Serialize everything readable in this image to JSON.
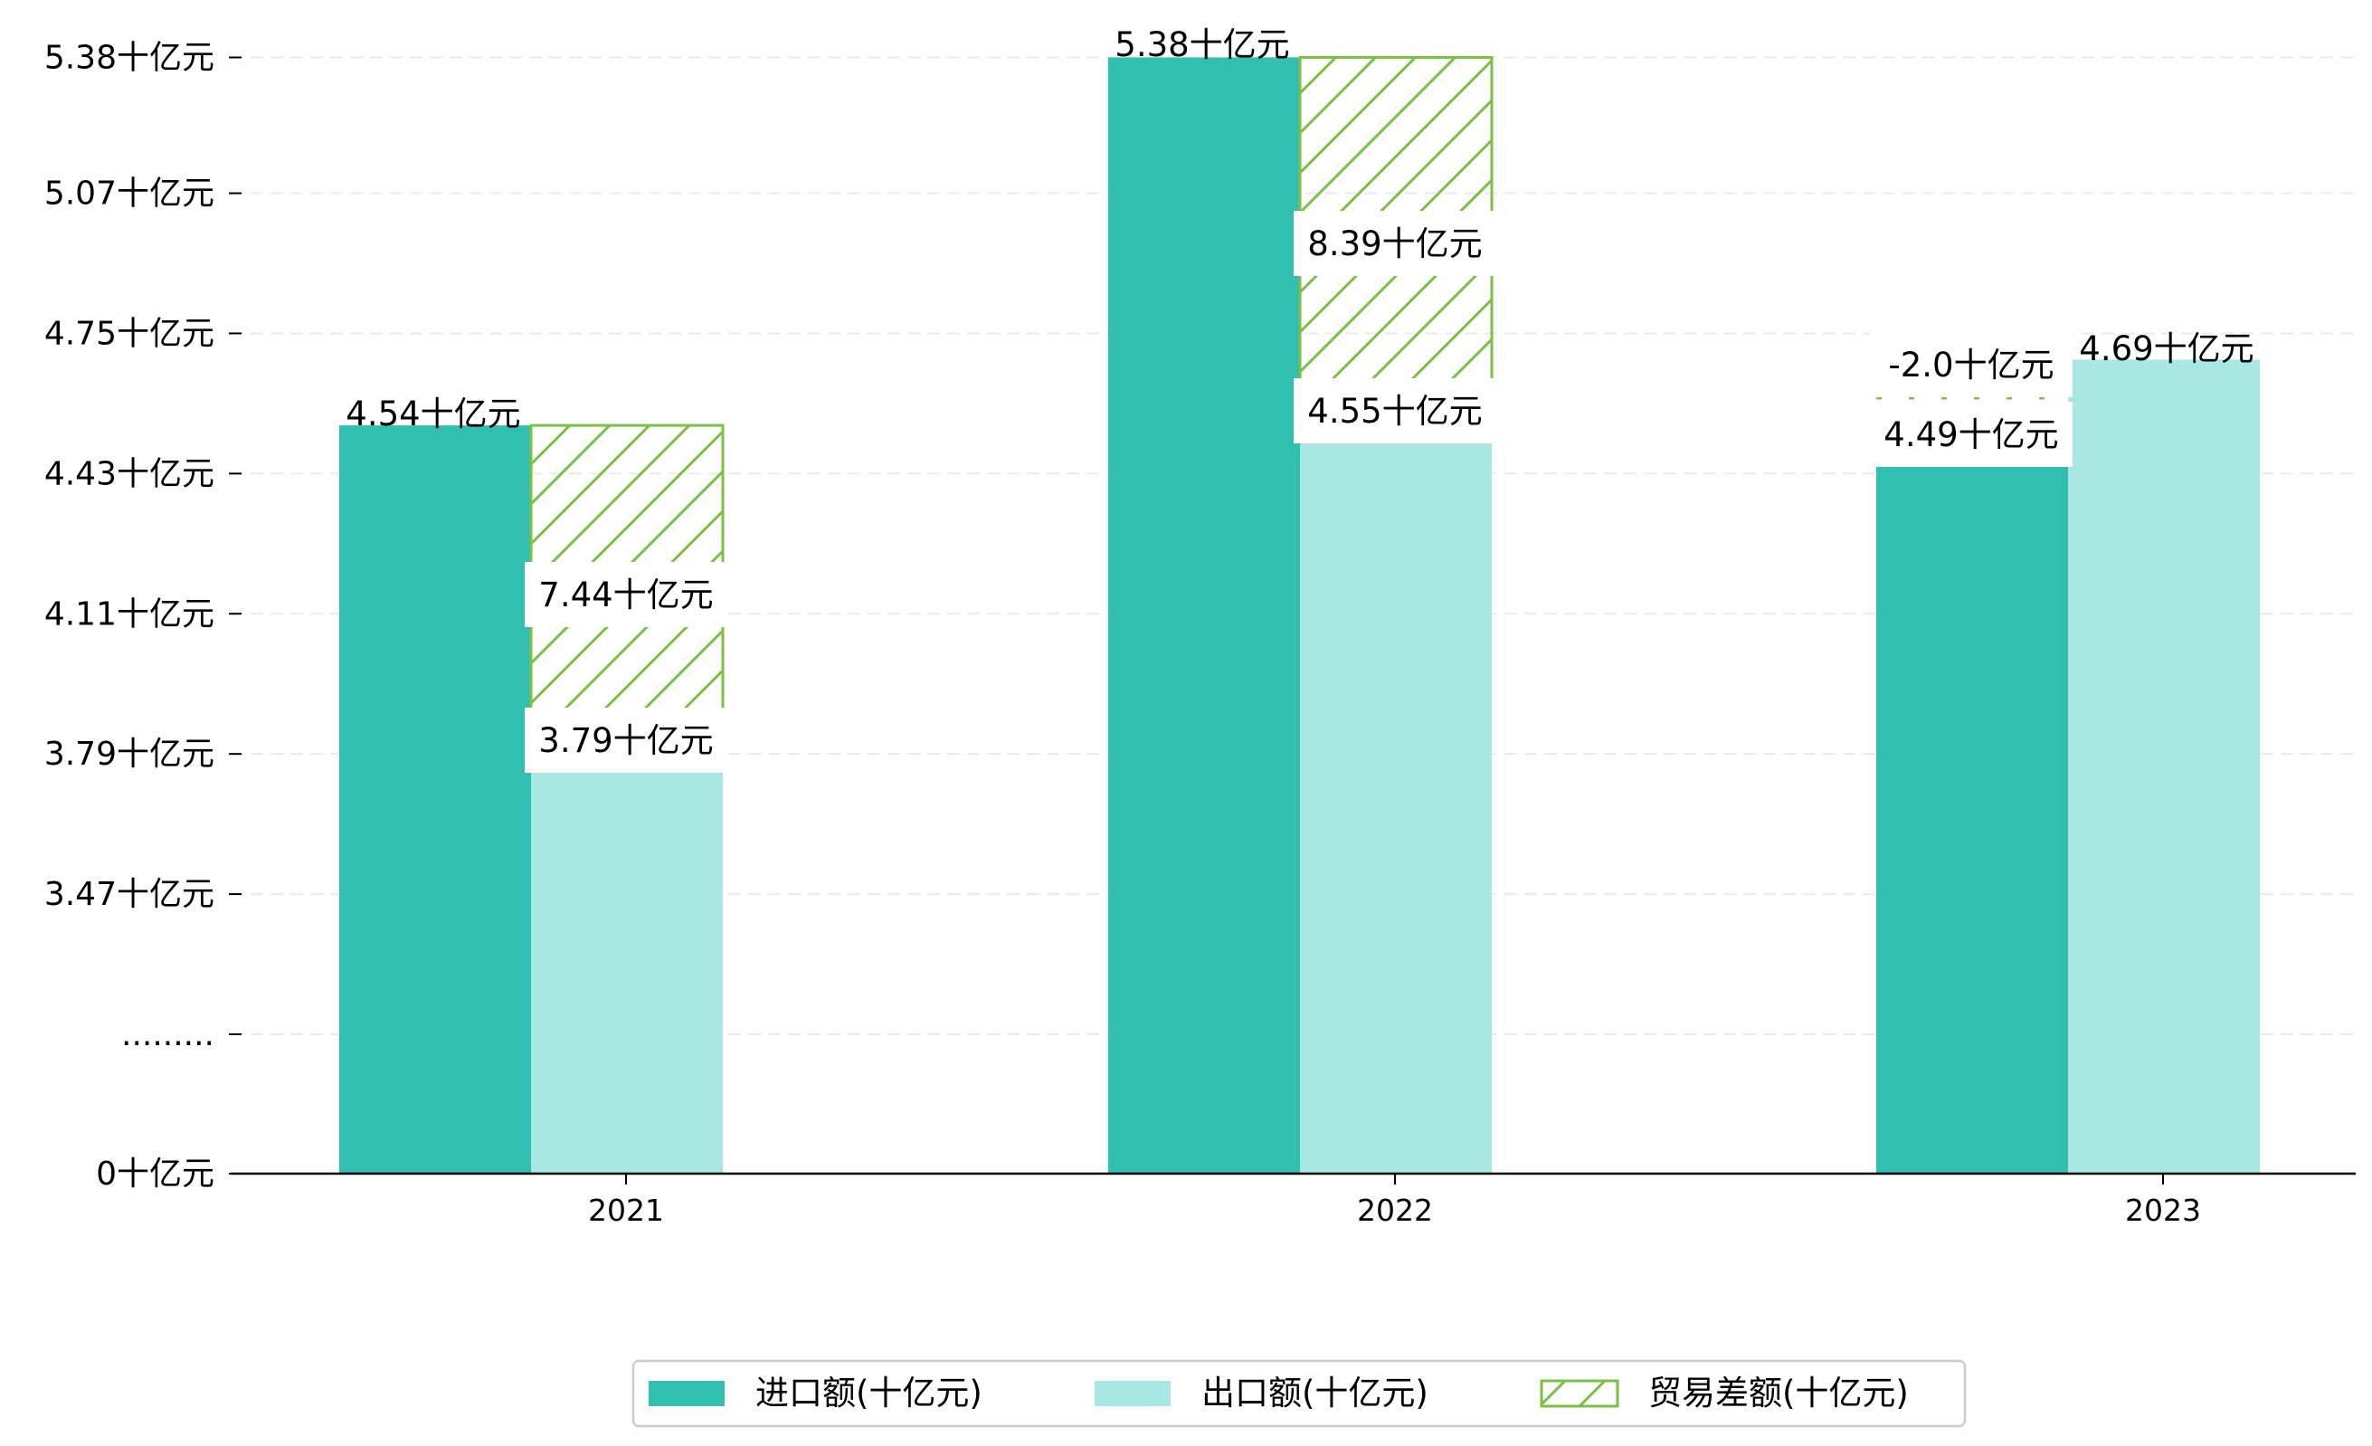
{
  "chart_data": {
    "type": "bar",
    "title": "",
    "xlabel": "",
    "ylabel": "",
    "categories": [
      "2021",
      "2022",
      "2023"
    ],
    "series": [
      {
        "name": "进口额(十亿元)",
        "values": [
          4.54,
          5.38,
          4.49
        ],
        "color": "#31bfb2"
      },
      {
        "name": "出口额(十亿元)",
        "values": [
          3.79,
          4.55,
          4.69
        ],
        "color": "#a9e8e2"
      },
      {
        "name": "贸易差额(十亿元)",
        "values": [
          7.44,
          8.39,
          -2.0
        ],
        "color": "#7bc143",
        "pattern": "hatch"
      }
    ],
    "data_labels": {
      "import": [
        "4.54十亿元",
        "5.38十亿元",
        "4.49十亿元"
      ],
      "export": [
        "3.79十亿元",
        "4.55十亿元",
        "4.69十亿元"
      ],
      "balance": [
        "7.44十亿元",
        "8.39十亿元",
        "-2.0十亿元"
      ]
    },
    "yticks": [
      {
        "value": 0,
        "label": "0十亿元"
      },
      {
        "value": 3.15,
        "label": "........."
      },
      {
        "value": 3.47,
        "label": "3.47十亿元"
      },
      {
        "value": 3.79,
        "label": "3.79十亿元"
      },
      {
        "value": 4.11,
        "label": "4.11十亿元"
      },
      {
        "value": 4.43,
        "label": "4.43十亿元"
      },
      {
        "value": 4.75,
        "label": "4.75十亿元"
      },
      {
        "value": 5.07,
        "label": "5.07十亿元"
      },
      {
        "value": 5.38,
        "label": "5.38十亿元"
      }
    ],
    "axis_break": true,
    "grid": true,
    "legend_position": "bottom-center"
  }
}
